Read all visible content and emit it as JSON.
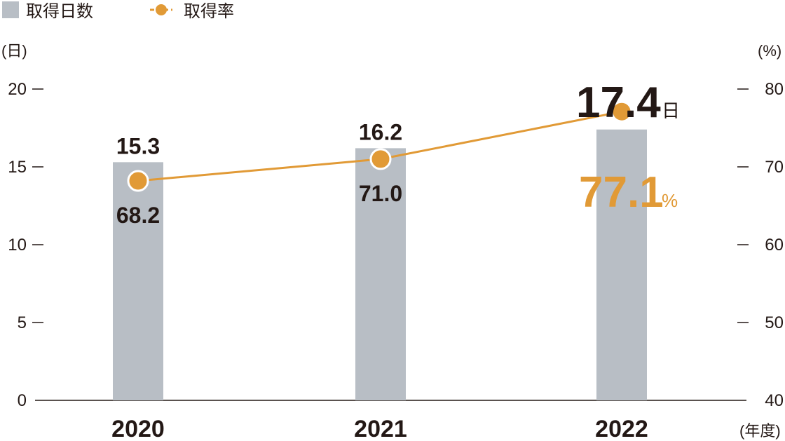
{
  "legend": {
    "bar_label": "取得日数",
    "line_label": "取得率"
  },
  "units": {
    "left": "(日)",
    "right": "(%)",
    "x": "(年度)"
  },
  "colors": {
    "bar": "#b8bec5",
    "line": "#e19a36",
    "text": "#231815",
    "axis": "#231815"
  },
  "highlight": {
    "bar_value": "17.4",
    "bar_unit": "日",
    "line_value": "77.1",
    "line_unit": "%"
  },
  "chart_data": {
    "type": "bar",
    "categories": [
      "2020",
      "2021",
      "2022"
    ],
    "series": [
      {
        "name": "取得日数",
        "type": "bar",
        "axis": "left",
        "values": [
          15.3,
          16.2,
          17.4
        ]
      },
      {
        "name": "取得率",
        "type": "line",
        "axis": "right",
        "values": [
          68.2,
          71.0,
          77.1
        ]
      }
    ],
    "bar_labels": [
      "15.3",
      "16.2",
      null
    ],
    "line_labels": [
      "68.2",
      "71.0",
      null
    ],
    "y_left": {
      "label": "(日)",
      "ylim": [
        0,
        20
      ],
      "ticks": [
        0,
        5,
        10,
        15,
        20
      ]
    },
    "y_right": {
      "label": "(%)",
      "ylim": [
        40,
        80
      ],
      "ticks": [
        40,
        50,
        60,
        70,
        80
      ]
    },
    "xlabel": "(年度)",
    "grid": false,
    "legend_position": "top-left"
  }
}
